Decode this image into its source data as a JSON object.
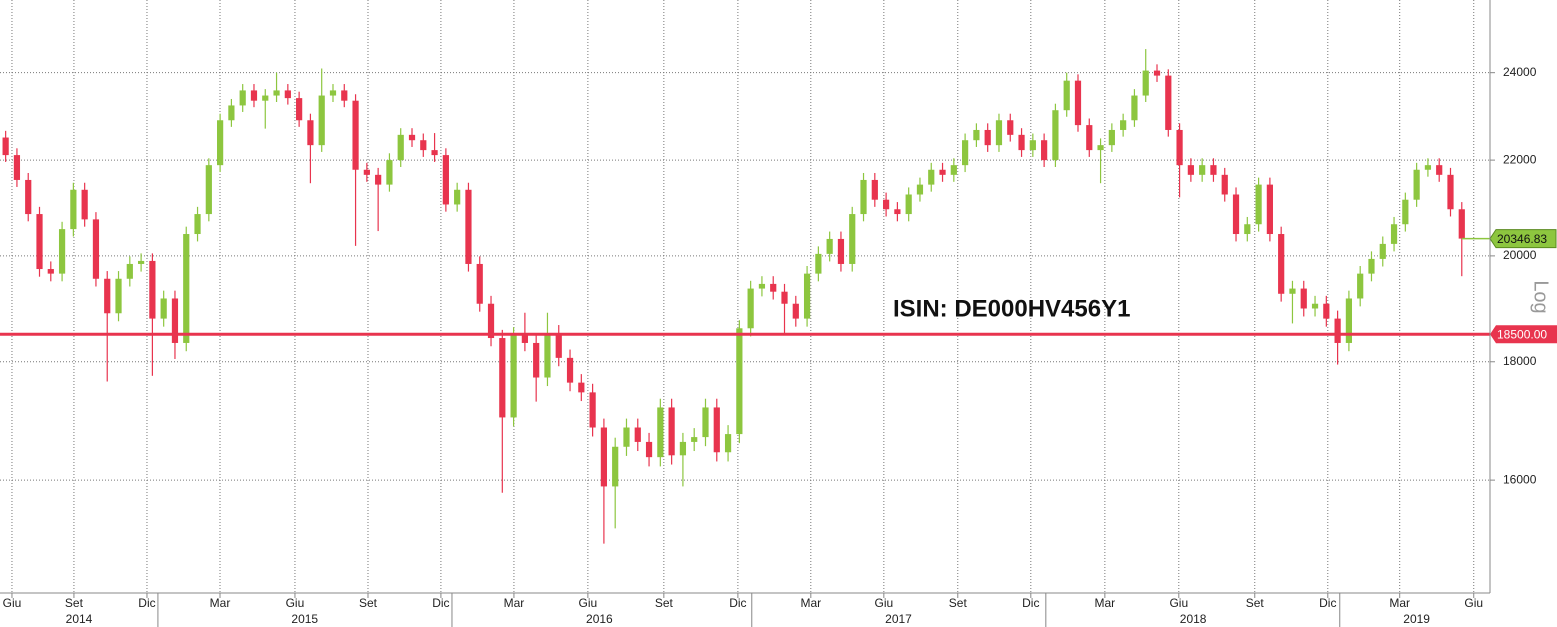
{
  "chart_data": {
    "type": "candlestick",
    "annotation": "ISIN: DE000HV456Y1",
    "scale_label": "Log",
    "log_scale": true,
    "grid": true,
    "up_color": "#8dc63f",
    "down_color": "#e8344e",
    "xlim": [
      -0.5,
      131.5
    ],
    "ylim": [
      14300,
      25800
    ],
    "yticks": [
      16000,
      18000,
      20000,
      22000,
      24000
    ],
    "xticks": [
      {
        "value": 0.56,
        "label": "Giu"
      },
      {
        "value": 6.05,
        "label": "Set"
      },
      {
        "value": 12.52,
        "label": "Dic"
      },
      {
        "value": 18.99,
        "label": "Mar"
      },
      {
        "value": 25.63,
        "label": "Giu"
      },
      {
        "value": 32.1,
        "label": "Set"
      },
      {
        "value": 38.56,
        "label": "Dic"
      },
      {
        "value": 45.03,
        "label": "Mar"
      },
      {
        "value": 51.58,
        "label": "Giu"
      },
      {
        "value": 58.31,
        "label": "Set"
      },
      {
        "value": 64.87,
        "label": "Dic"
      },
      {
        "value": 71.33,
        "label": "Mar"
      },
      {
        "value": 77.8,
        "label": "Giu"
      },
      {
        "value": 84.35,
        "label": "Set"
      },
      {
        "value": 90.82,
        "label": "Dic"
      },
      {
        "value": 97.38,
        "label": "Mar"
      },
      {
        "value": 103.93,
        "label": "Giu"
      },
      {
        "value": 110.66,
        "label": "Set"
      },
      {
        "value": 117.13,
        "label": "Dic"
      },
      {
        "value": 123.5,
        "label": "Mar"
      },
      {
        "value": 130.06,
        "label": "Giu"
      }
    ],
    "year_ticks": [
      13.49,
      39.54,
      66.1,
      92.15,
      118.19
    ],
    "year_labels": [
      {
        "value": 6.5,
        "label": "2014"
      },
      {
        "value": 26.5,
        "label": "2015"
      },
      {
        "value": 52.6,
        "label": "2016"
      },
      {
        "value": 79.1,
        "label": "2017"
      },
      {
        "value": 105.2,
        "label": "2018"
      },
      {
        "value": 125.0,
        "label": "2019"
      }
    ],
    "hline": {
      "value": 18500,
      "label": "18500.00",
      "color": "#e8344e"
    },
    "last_price": {
      "value": 20346.83,
      "label": "20346.83"
    },
    "open": [
      22500,
      22110,
      21570,
      20850,
      19740,
      19650,
      20540,
      21360,
      20740,
      19550,
      18890,
      19550,
      19840,
      19900,
      18790,
      19170,
      18340,
      20440,
      20850,
      21890,
      22890,
      23230,
      23580,
      23340,
      23460,
      23580,
      23400,
      22890,
      22330,
      23460,
      23580,
      23340,
      21790,
      21680,
      21470,
      22000,
      22560,
      22440,
      22220,
      22110,
      21050,
      21360,
      19840,
      19070,
      18430,
      17030,
      18480,
      18340,
      17720,
      18520,
      18070,
      17630,
      17460,
      16860,
      15900,
      16540,
      16860,
      16620,
      16370,
      17200,
      16400,
      16620,
      16700,
      17200,
      16450,
      16750,
      18610,
      19360,
      19450,
      19300,
      19070,
      18790,
      19650,
      20040,
      20340,
      19840,
      20850,
      21570,
      21150,
      20950,
      20850,
      21260,
      21470,
      21790,
      21680,
      21890,
      22440,
      22670,
      22330,
      22890,
      22560,
      22220,
      22440,
      22000,
      23120,
      23810,
      22780,
      22220,
      22330,
      22670,
      22890,
      23460,
      24050,
      23930,
      22670,
      21890,
      21680,
      21890,
      21680,
      21260,
      20440,
      20640,
      21470,
      20440,
      19260,
      19360,
      18980,
      19070,
      18790,
      18340,
      19170,
      19650,
      19940,
      20240,
      20640,
      21150,
      21790,
      21890,
      21680,
      20950
    ],
    "high": [
      22650,
      22260,
      21720,
      21000,
      19890,
      20690,
      21510,
      21510,
      20890,
      19700,
      19700,
      19990,
      20050,
      20050,
      19320,
      19320,
      20590,
      21000,
      22040,
      23040,
      23380,
      23730,
      23730,
      23610,
      24000,
      23730,
      23550,
      23040,
      24100,
      23730,
      23730,
      23490,
      21940,
      21830,
      22150,
      22710,
      22710,
      22590,
      22600,
      22260,
      21510,
      21510,
      19990,
      19220,
      18580,
      18630,
      18900,
      18490,
      18900,
      18670,
      18220,
      17780,
      17610,
      17010,
      16690,
      17010,
      17010,
      16770,
      17350,
      17350,
      16770,
      16850,
      17350,
      17350,
      16900,
      18760,
      19510,
      19600,
      19600,
      19450,
      19220,
      19800,
      20190,
      20490,
      20490,
      21000,
      21720,
      21720,
      21300,
      21100,
      21410,
      21620,
      21940,
      21940,
      22040,
      22590,
      22820,
      22820,
      23040,
      23040,
      22710,
      22590,
      22590,
      23270,
      24000,
      23960,
      22930,
      22480,
      22820,
      23040,
      23610,
      24570,
      24200,
      24080,
      22820,
      22040,
      22040,
      22040,
      21830,
      21410,
      20790,
      21620,
      21620,
      20590,
      19510,
      19510,
      19220,
      19220,
      18940,
      19320,
      19800,
      20090,
      20390,
      20790,
      21300,
      21940,
      22040,
      22040,
      21830,
      21100
    ],
    "low": [
      21960,
      21420,
      20700,
      19590,
      19500,
      19500,
      20390,
      20590,
      19400,
      17650,
      18740,
      19400,
      19690,
      17750,
      18640,
      18050,
      18190,
      20290,
      20700,
      21740,
      22740,
      23080,
      23190,
      22700,
      23310,
      23250,
      22740,
      21500,
      22180,
      23310,
      23190,
      20200,
      21530,
      20500,
      21320,
      21850,
      22290,
      22070,
      21960,
      20900,
      20900,
      19690,
      18920,
      18280,
      15800,
      16880,
      18190,
      17300,
      17570,
      17920,
      17480,
      17310,
      16710,
      15020,
      15250,
      16390,
      16470,
      16220,
      16220,
      16250,
      15900,
      16470,
      16550,
      16300,
      16300,
      16600,
      18460,
      19210,
      19150,
      18500,
      18640,
      18640,
      19500,
      19890,
      19690,
      19690,
      20700,
      21000,
      20800,
      20700,
      20700,
      21110,
      21320,
      21530,
      21530,
      21740,
      22290,
      22180,
      22180,
      22410,
      22070,
      22070,
      21850,
      21850,
      22970,
      22630,
      22070,
      21500,
      22180,
      22520,
      22740,
      23310,
      23780,
      22520,
      21200,
      21530,
      21530,
      21530,
      21110,
      20290,
      20290,
      20490,
      20290,
      19110,
      18700,
      18830,
      18830,
      18640,
      17950,
      18190,
      19020,
      19500,
      19790,
      20090,
      20490,
      21000,
      21640,
      21530,
      20800,
      19600
    ],
    "close": [
      22110,
      21570,
      20850,
      19740,
      19650,
      20540,
      21360,
      20740,
      19550,
      18890,
      19550,
      19840,
      19900,
      18790,
      19170,
      18340,
      20440,
      20850,
      21890,
      22890,
      23230,
      23580,
      23340,
      23460,
      23580,
      23400,
      22890,
      22330,
      23460,
      23580,
      23340,
      21790,
      21680,
      21470,
      22000,
      22560,
      22440,
      22220,
      22110,
      21050,
      21360,
      19840,
      19070,
      18430,
      17030,
      18480,
      18340,
      17720,
      18520,
      18070,
      17630,
      17460,
      16860,
      15900,
      16540,
      16860,
      16620,
      16370,
      17200,
      16400,
      16620,
      16700,
      17200,
      16450,
      16750,
      18610,
      19360,
      19450,
      19300,
      19070,
      18790,
      19650,
      20040,
      20340,
      19840,
      20850,
      21570,
      21150,
      20950,
      20850,
      21260,
      21470,
      21790,
      21680,
      21890,
      22440,
      22670,
      22330,
      22890,
      22560,
      22220,
      22440,
      22000,
      23120,
      23810,
      22780,
      22220,
      22330,
      22670,
      22890,
      23460,
      24050,
      23930,
      22670,
      21890,
      21680,
      21890,
      21680,
      21260,
      20440,
      20640,
      21470,
      20440,
      19260,
      19360,
      18980,
      19070,
      18790,
      18340,
      19170,
      19650,
      19940,
      20240,
      20640,
      21150,
      21790,
      21890,
      21680,
      20950,
      20346.83
    ]
  }
}
